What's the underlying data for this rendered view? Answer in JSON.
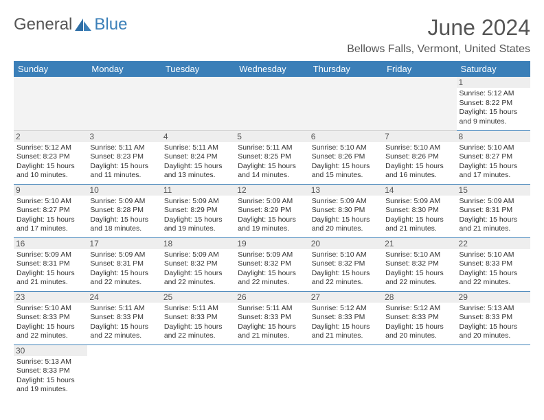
{
  "brand": {
    "part1": "General",
    "part2": "Blue"
  },
  "title": "June 2024",
  "location": "Bellows Falls, Vermont, United States",
  "colors": {
    "header_bg": "#3b7fb8",
    "text": "#333333",
    "muted": "#555555",
    "empty_bg": "#f3f3f3",
    "daynum_bg": "#eeeeee"
  },
  "weekdays": [
    "Sunday",
    "Monday",
    "Tuesday",
    "Wednesday",
    "Thursday",
    "Friday",
    "Saturday"
  ],
  "weeks": [
    [
      null,
      null,
      null,
      null,
      null,
      null,
      {
        "n": "1",
        "sr": "Sunrise: 5:12 AM",
        "ss": "Sunset: 8:22 PM",
        "d1": "Daylight: 15 hours",
        "d2": "and 9 minutes."
      }
    ],
    [
      {
        "n": "2",
        "sr": "Sunrise: 5:12 AM",
        "ss": "Sunset: 8:23 PM",
        "d1": "Daylight: 15 hours",
        "d2": "and 10 minutes."
      },
      {
        "n": "3",
        "sr": "Sunrise: 5:11 AM",
        "ss": "Sunset: 8:23 PM",
        "d1": "Daylight: 15 hours",
        "d2": "and 11 minutes."
      },
      {
        "n": "4",
        "sr": "Sunrise: 5:11 AM",
        "ss": "Sunset: 8:24 PM",
        "d1": "Daylight: 15 hours",
        "d2": "and 13 minutes."
      },
      {
        "n": "5",
        "sr": "Sunrise: 5:11 AM",
        "ss": "Sunset: 8:25 PM",
        "d1": "Daylight: 15 hours",
        "d2": "and 14 minutes."
      },
      {
        "n": "6",
        "sr": "Sunrise: 5:10 AM",
        "ss": "Sunset: 8:26 PM",
        "d1": "Daylight: 15 hours",
        "d2": "and 15 minutes."
      },
      {
        "n": "7",
        "sr": "Sunrise: 5:10 AM",
        "ss": "Sunset: 8:26 PM",
        "d1": "Daylight: 15 hours",
        "d2": "and 16 minutes."
      },
      {
        "n": "8",
        "sr": "Sunrise: 5:10 AM",
        "ss": "Sunset: 8:27 PM",
        "d1": "Daylight: 15 hours",
        "d2": "and 17 minutes."
      }
    ],
    [
      {
        "n": "9",
        "sr": "Sunrise: 5:10 AM",
        "ss": "Sunset: 8:27 PM",
        "d1": "Daylight: 15 hours",
        "d2": "and 17 minutes."
      },
      {
        "n": "10",
        "sr": "Sunrise: 5:09 AM",
        "ss": "Sunset: 8:28 PM",
        "d1": "Daylight: 15 hours",
        "d2": "and 18 minutes."
      },
      {
        "n": "11",
        "sr": "Sunrise: 5:09 AM",
        "ss": "Sunset: 8:29 PM",
        "d1": "Daylight: 15 hours",
        "d2": "and 19 minutes."
      },
      {
        "n": "12",
        "sr": "Sunrise: 5:09 AM",
        "ss": "Sunset: 8:29 PM",
        "d1": "Daylight: 15 hours",
        "d2": "and 19 minutes."
      },
      {
        "n": "13",
        "sr": "Sunrise: 5:09 AM",
        "ss": "Sunset: 8:30 PM",
        "d1": "Daylight: 15 hours",
        "d2": "and 20 minutes."
      },
      {
        "n": "14",
        "sr": "Sunrise: 5:09 AM",
        "ss": "Sunset: 8:30 PM",
        "d1": "Daylight: 15 hours",
        "d2": "and 21 minutes."
      },
      {
        "n": "15",
        "sr": "Sunrise: 5:09 AM",
        "ss": "Sunset: 8:31 PM",
        "d1": "Daylight: 15 hours",
        "d2": "and 21 minutes."
      }
    ],
    [
      {
        "n": "16",
        "sr": "Sunrise: 5:09 AM",
        "ss": "Sunset: 8:31 PM",
        "d1": "Daylight: 15 hours",
        "d2": "and 21 minutes."
      },
      {
        "n": "17",
        "sr": "Sunrise: 5:09 AM",
        "ss": "Sunset: 8:31 PM",
        "d1": "Daylight: 15 hours",
        "d2": "and 22 minutes."
      },
      {
        "n": "18",
        "sr": "Sunrise: 5:09 AM",
        "ss": "Sunset: 8:32 PM",
        "d1": "Daylight: 15 hours",
        "d2": "and 22 minutes."
      },
      {
        "n": "19",
        "sr": "Sunrise: 5:09 AM",
        "ss": "Sunset: 8:32 PM",
        "d1": "Daylight: 15 hours",
        "d2": "and 22 minutes."
      },
      {
        "n": "20",
        "sr": "Sunrise: 5:10 AM",
        "ss": "Sunset: 8:32 PM",
        "d1": "Daylight: 15 hours",
        "d2": "and 22 minutes."
      },
      {
        "n": "21",
        "sr": "Sunrise: 5:10 AM",
        "ss": "Sunset: 8:32 PM",
        "d1": "Daylight: 15 hours",
        "d2": "and 22 minutes."
      },
      {
        "n": "22",
        "sr": "Sunrise: 5:10 AM",
        "ss": "Sunset: 8:33 PM",
        "d1": "Daylight: 15 hours",
        "d2": "and 22 minutes."
      }
    ],
    [
      {
        "n": "23",
        "sr": "Sunrise: 5:10 AM",
        "ss": "Sunset: 8:33 PM",
        "d1": "Daylight: 15 hours",
        "d2": "and 22 minutes."
      },
      {
        "n": "24",
        "sr": "Sunrise: 5:11 AM",
        "ss": "Sunset: 8:33 PM",
        "d1": "Daylight: 15 hours",
        "d2": "and 22 minutes."
      },
      {
        "n": "25",
        "sr": "Sunrise: 5:11 AM",
        "ss": "Sunset: 8:33 PM",
        "d1": "Daylight: 15 hours",
        "d2": "and 22 minutes."
      },
      {
        "n": "26",
        "sr": "Sunrise: 5:11 AM",
        "ss": "Sunset: 8:33 PM",
        "d1": "Daylight: 15 hours",
        "d2": "and 21 minutes."
      },
      {
        "n": "27",
        "sr": "Sunrise: 5:12 AM",
        "ss": "Sunset: 8:33 PM",
        "d1": "Daylight: 15 hours",
        "d2": "and 21 minutes."
      },
      {
        "n": "28",
        "sr": "Sunrise: 5:12 AM",
        "ss": "Sunset: 8:33 PM",
        "d1": "Daylight: 15 hours",
        "d2": "and 20 minutes."
      },
      {
        "n": "29",
        "sr": "Sunrise: 5:13 AM",
        "ss": "Sunset: 8:33 PM",
        "d1": "Daylight: 15 hours",
        "d2": "and 20 minutes."
      }
    ],
    [
      {
        "n": "30",
        "sr": "Sunrise: 5:13 AM",
        "ss": "Sunset: 8:33 PM",
        "d1": "Daylight: 15 hours",
        "d2": "and 19 minutes."
      },
      null,
      null,
      null,
      null,
      null,
      null
    ]
  ]
}
